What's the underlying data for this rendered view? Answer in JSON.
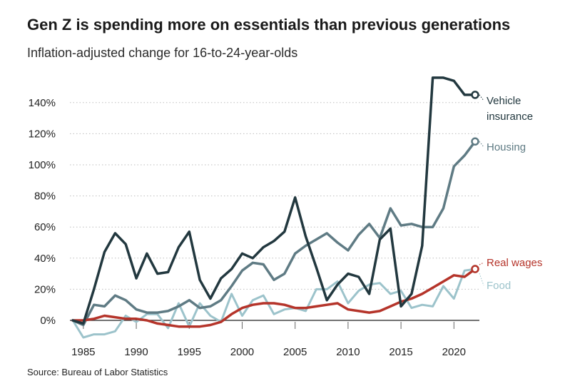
{
  "title": "Gen Z is spending more on essentials than previous generations",
  "subtitle": "Inflation-adjusted change for 16-to-24-year-olds",
  "source": "Source: Bureau of Labor Statistics",
  "chart_data": {
    "type": "line",
    "title": "Gen Z is spending more on essentials than previous generations",
    "subtitle": "Inflation-adjusted change for 16-to-24-year-olds",
    "xlim": [
      1984,
      2022
    ],
    "ylim": [
      0,
      150
    ],
    "y_unit": "%",
    "yticks": [
      0,
      20,
      40,
      60,
      80,
      100,
      120,
      140
    ],
    "ytick_labels": [
      "0%",
      "20%",
      "40%",
      "60%",
      "80%",
      "100%",
      "120%",
      "140%"
    ],
    "xticks": [
      1985,
      1990,
      1995,
      2000,
      2005,
      2010,
      2015,
      2020
    ],
    "xtick_labels": [
      "1985",
      "1990",
      "1995",
      "2000",
      "2005",
      "2010",
      "2015",
      "2020"
    ],
    "grid": "horizontal dotted",
    "x": [
      1984,
      1985,
      1986,
      1987,
      1988,
      1989,
      1990,
      1991,
      1992,
      1993,
      1994,
      1995,
      1996,
      1997,
      1998,
      1999,
      2000,
      2001,
      2002,
      2003,
      2004,
      2005,
      2006,
      2007,
      2008,
      2009,
      2010,
      2011,
      2012,
      2013,
      2014,
      2015,
      2016,
      2017,
      2018,
      2019,
      2020,
      2021,
      2022
    ],
    "series": [
      {
        "name": "Vehicle insurance",
        "label_lines": [
          "Vehicle",
          "insurance"
        ],
        "color": "#22383f",
        "width": 3.5,
        "values": [
          0,
          -2,
          20,
          44,
          56,
          49,
          27,
          43,
          30,
          31,
          47,
          57,
          26,
          14,
          27,
          33,
          43,
          40,
          47,
          51,
          57,
          79,
          54,
          34,
          13,
          23,
          30,
          28,
          17,
          52,
          59,
          9,
          17,
          48,
          156,
          156,
          154,
          145,
          145
        ]
      },
      {
        "name": "Housing",
        "label_lines": [
          "Housing"
        ],
        "color": "#5f7b84",
        "width": 3.5,
        "values": [
          0,
          -3,
          10,
          9,
          16,
          13,
          7,
          5,
          5,
          6,
          9,
          13,
          8,
          9,
          13,
          22,
          32,
          37,
          36,
          26,
          30,
          43,
          48,
          52,
          56,
          50,
          45,
          55,
          62,
          53,
          72,
          61,
          62,
          60,
          60,
          72,
          99,
          106,
          115
        ]
      },
      {
        "name": "Real wages",
        "label_lines": [
          "Real wages"
        ],
        "color": "#b5342a",
        "width": 3.5,
        "values": [
          0,
          0,
          1,
          3,
          2,
          1,
          1,
          0,
          -2,
          -3,
          -4,
          -4,
          -4,
          -3,
          -1,
          4,
          8,
          10,
          11,
          11,
          10,
          8,
          8,
          9,
          10,
          11,
          7,
          6,
          5,
          6,
          9,
          12,
          14,
          17,
          21,
          25,
          29,
          28,
          33
        ]
      },
      {
        "name": "Food",
        "label_lines": [
          "Food"
        ],
        "color": "#9cc3cb",
        "width": 3,
        "values": [
          0,
          -11,
          -9,
          -9,
          -7,
          3,
          -1,
          4,
          4,
          -5,
          11,
          -4,
          11,
          3,
          -1,
          17,
          3,
          13,
          16,
          4,
          7,
          8,
          6,
          20,
          20,
          25,
          11,
          19,
          23,
          24,
          17,
          19,
          8,
          10,
          9,
          22,
          14,
          32,
          33
        ]
      }
    ]
  }
}
